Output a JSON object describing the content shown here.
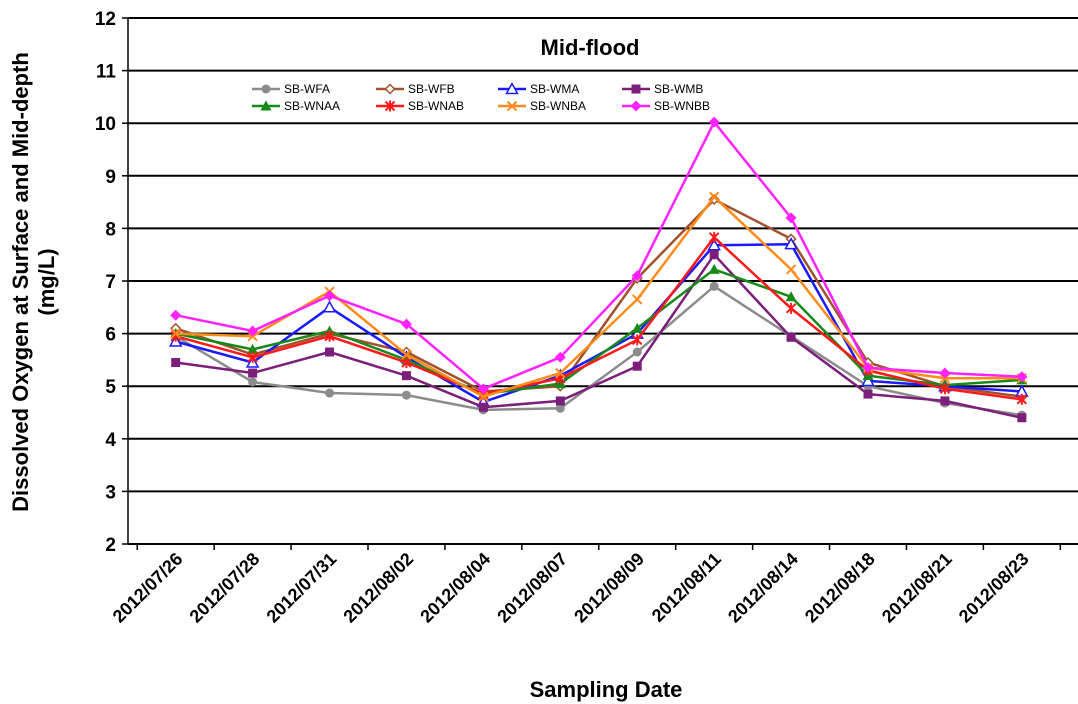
{
  "chart_data": {
    "type": "line",
    "title": "Mid-flood",
    "xlabel": "Sampling Date",
    "ylabel_line1": "Dissolved Oxygen at Surface and Mid-depth",
    "ylabel_line2": "(mg/L)",
    "ylim": [
      2,
      12
    ],
    "yticks": [
      2,
      3,
      4,
      5,
      6,
      7,
      8,
      9,
      10,
      11,
      12
    ],
    "grid": "horizontal",
    "legend_position": "top-center",
    "categories": [
      "2012/07/26",
      "2012/07/28",
      "2012/07/31",
      "2012/08/02",
      "2012/08/04",
      "2012/08/07",
      "2012/08/09",
      "2012/08/11",
      "2012/08/14",
      "2012/08/18",
      "2012/08/21",
      "2012/08/23"
    ],
    "series": [
      {
        "name": "SB-WFA",
        "color": "#8c8c8c",
        "marker": "circle",
        "values": [
          5.95,
          5.08,
          4.87,
          4.83,
          4.55,
          4.58,
          5.65,
          6.9,
          5.95,
          5.0,
          4.68,
          4.45
        ]
      },
      {
        "name": "SB-WFB",
        "color": "#a0522d",
        "marker": "open-diamond",
        "values": [
          6.1,
          5.6,
          6.0,
          5.65,
          4.9,
          5.0,
          7.05,
          8.55,
          7.8,
          5.45,
          5.0,
          4.8
        ]
      },
      {
        "name": "SB-WMA",
        "color": "#1a1aff",
        "marker": "open-triangle",
        "values": [
          5.85,
          5.45,
          6.5,
          5.55,
          4.7,
          5.2,
          6.0,
          7.68,
          7.7,
          5.1,
          5.0,
          4.9
        ]
      },
      {
        "name": "SB-WMB",
        "color": "#7b1f7b",
        "marker": "square",
        "values": [
          5.45,
          5.25,
          5.65,
          5.2,
          4.6,
          4.72,
          5.38,
          7.5,
          5.93,
          4.85,
          4.72,
          4.4
        ]
      },
      {
        "name": "SB-WNAA",
        "color": "#178a17",
        "marker": "triangle",
        "values": [
          6.0,
          5.7,
          6.05,
          5.5,
          4.85,
          5.05,
          6.1,
          7.22,
          6.7,
          5.2,
          5.02,
          5.12
        ]
      },
      {
        "name": "SB-WNAB",
        "color": "#ff1a1a",
        "marker": "x-star",
        "values": [
          5.95,
          5.55,
          5.95,
          5.45,
          4.85,
          5.15,
          5.88,
          7.83,
          6.48,
          5.3,
          4.95,
          4.75
        ]
      },
      {
        "name": "SB-WNBA",
        "color": "#ff8c1a",
        "marker": "x",
        "values": [
          6.0,
          5.95,
          6.8,
          5.6,
          4.8,
          5.25,
          6.65,
          8.6,
          7.22,
          5.35,
          5.15,
          5.15
        ]
      },
      {
        "name": "SB-WNBB",
        "color": "#ff22ff",
        "marker": "diamond",
        "values": [
          6.35,
          6.05,
          6.72,
          6.18,
          4.95,
          5.55,
          7.1,
          10.02,
          8.2,
          5.35,
          5.25,
          5.18
        ]
      }
    ]
  }
}
